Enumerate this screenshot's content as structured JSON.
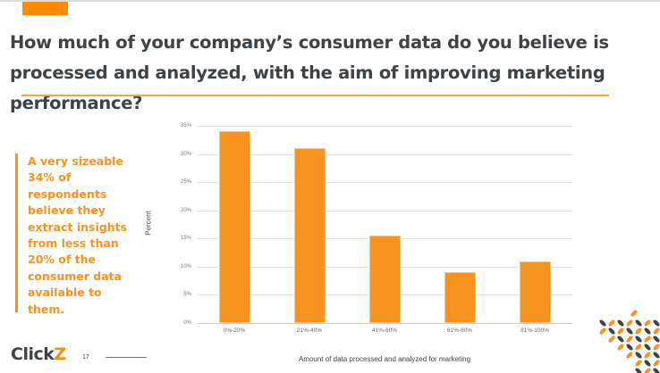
{
  "slide": {
    "title": "How much of your company’s consumer data do you believe is processed and analyzed, with the aim of improving marketing performance?",
    "callout": "A very sizeable 34% of respondents believe they extract insights from less than 20% of the consumer data available to them.",
    "footer": {
      "logo_main": "Click",
      "logo_accent": "Z",
      "page_number": "17"
    },
    "colors": {
      "accent": "#f7931e",
      "brand_orange": "#ff8c00",
      "title_text": "#3d4347"
    }
  },
  "chart_data": {
    "type": "bar",
    "title": "",
    "categories": [
      "0%-20%",
      "21%-40%",
      "41%-60%",
      "61%-80%",
      "81%-100%"
    ],
    "values": [
      34,
      31,
      15.5,
      9,
      11
    ],
    "xlabel": "Amount of data processed and analyzed for marketing",
    "ylabel": "Percent",
    "ylim": [
      0,
      35
    ],
    "yticks": [
      "0%",
      "5%",
      "10%",
      "15%",
      "20%",
      "25%",
      "30%",
      "35%"
    ],
    "grid": true,
    "legend": "none",
    "bar_color": "#f7931e"
  }
}
